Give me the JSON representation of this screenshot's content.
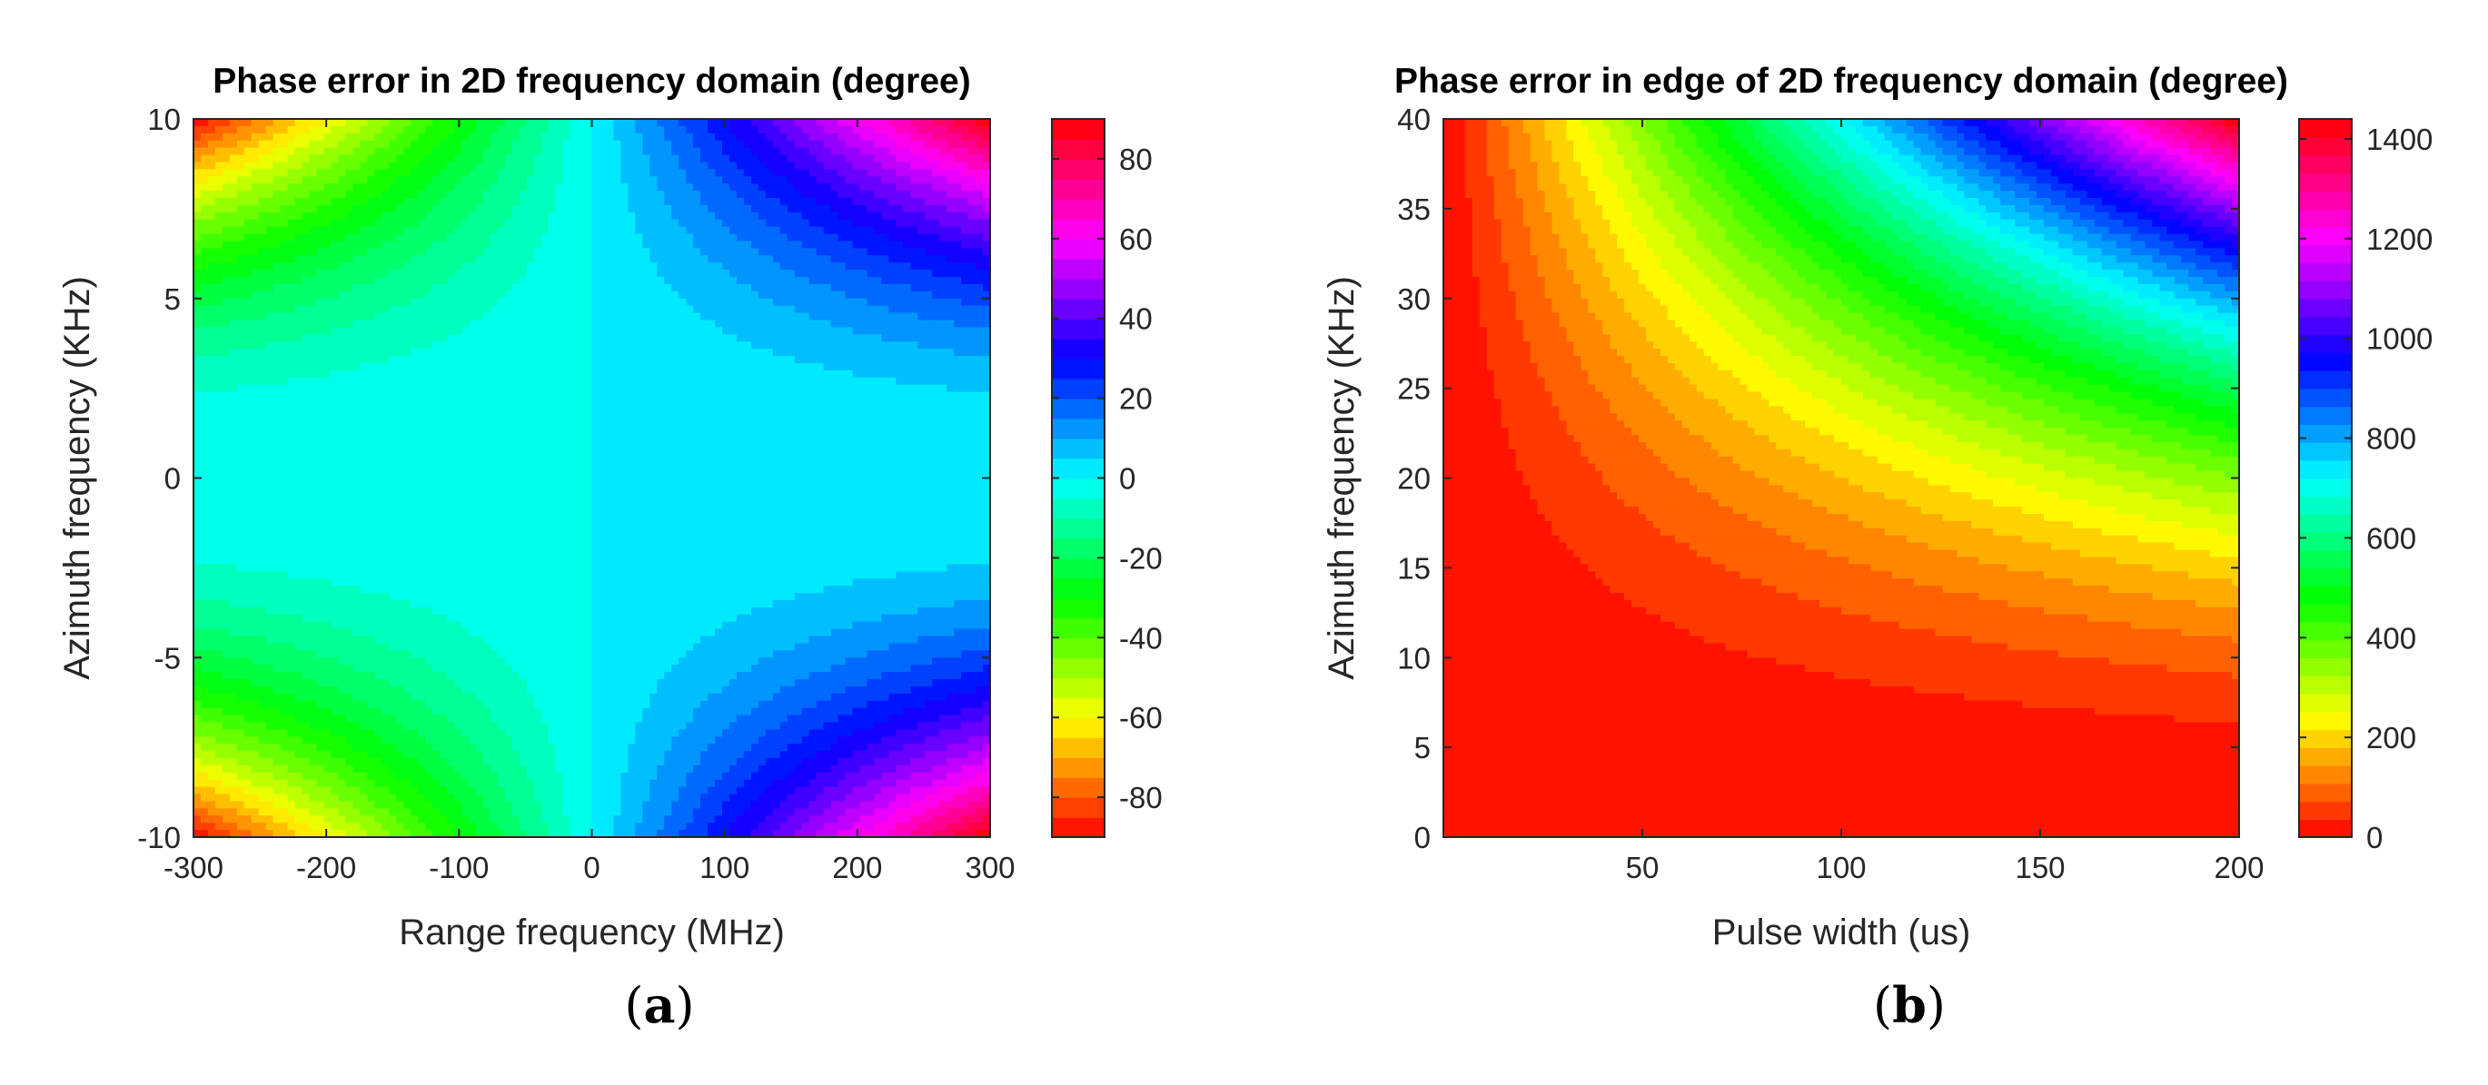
{
  "chart_data": [
    {
      "type": "heatmap",
      "panel_label": "a",
      "title": "Phase error in 2D frequency domain (degree)",
      "xlabel": "Range frequency (MHz)",
      "ylabel": "Azimuth frequency (KHz)",
      "xlim": [
        -300,
        300
      ],
      "ylim": [
        -10,
        10
      ],
      "x_ticks": [
        -300,
        -200,
        -100,
        0,
        100,
        200,
        300
      ],
      "y_ticks": [
        -10,
        -5,
        0,
        5,
        10
      ],
      "colorbar": {
        "range": [
          -90,
          90
        ],
        "ticks": [
          -80,
          -60,
          -40,
          -20,
          0,
          20,
          40,
          60,
          80
        ]
      },
      "colormap": "hsv",
      "contour_levels": 36,
      "z_model": "z = 90 * (x / 300) * (y / 10) ^ 2 (odd in x, even in y)",
      "z_grid_note": "phase error in degrees; max +90 near (+-300 MHz, corners), min -90; near 0 along the x = 0 and y = 0 axes"
    },
    {
      "type": "heatmap",
      "panel_label": "b",
      "title": "Phase error in edge of 2D frequency domain (degree)",
      "xlabel": "Pulse width (us)",
      "ylabel": "Azimuth frequency (KHz)",
      "xlim": [
        0,
        200
      ],
      "ylim": [
        0,
        40
      ],
      "x_ticks": [
        50,
        100,
        150,
        200
      ],
      "y_ticks": [
        0,
        5,
        10,
        15,
        20,
        25,
        30,
        35,
        40
      ],
      "colorbar": {
        "range": [
          0,
          1440
        ],
        "ticks": [
          0,
          200,
          400,
          600,
          800,
          1000,
          1200,
          1400
        ]
      },
      "colormap": "hsv",
      "contour_levels": 40,
      "z_model": "z = 1440 * (x / 200) * (y / 40) ^ 2",
      "z_grid_note": "phase error in degrees grows with pulse width and azimuth frequency; max about 1440 at (200 us, 40 KHz)"
    }
  ]
}
